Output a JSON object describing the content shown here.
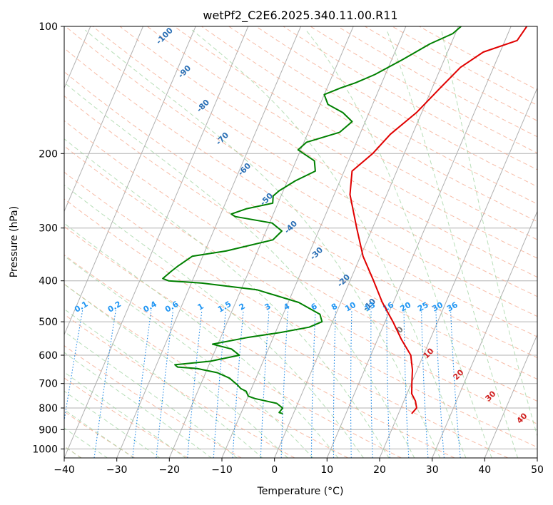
{
  "chart_data": {
    "type": "line",
    "diagram": "skew-T log-p",
    "title": "wetPf2_C2E6.2025.340.11.00.R11",
    "xlabel": "Temperature (°C)",
    "ylabel": "Pressure (hPa)",
    "xlim": [
      -40,
      50
    ],
    "ylim": [
      1050,
      100
    ],
    "x_ticks": [
      -40,
      -30,
      -20,
      -10,
      0,
      10,
      20,
      30,
      40,
      50
    ],
    "y_ticks": [
      100,
      200,
      300,
      400,
      500,
      600,
      700,
      800,
      900,
      1000
    ],
    "grid": true,
    "series": [
      {
        "name": "Temperature",
        "color": "#e00000",
        "points": [
          [
            22.5,
            825
          ],
          [
            23.0,
            800
          ],
          [
            22.2,
            770
          ],
          [
            20.9,
            740
          ],
          [
            20.1,
            700
          ],
          [
            19.1,
            650
          ],
          [
            17.6,
            600
          ],
          [
            14.5,
            550
          ],
          [
            11.5,
            500
          ],
          [
            7.9,
            450
          ],
          [
            4.5,
            400
          ],
          [
            0.5,
            350
          ],
          [
            -3.0,
            300
          ],
          [
            -7.0,
            250
          ],
          [
            -8.5,
            220
          ],
          [
            -6.0,
            200
          ],
          [
            -4.2,
            180
          ],
          [
            -1.0,
            160
          ],
          [
            1.5,
            140
          ],
          [
            3.7,
            125
          ],
          [
            6.8,
            115
          ],
          [
            12.3,
            108
          ],
          [
            13.0,
            100
          ]
        ]
      },
      {
        "name": "Dewpoint",
        "color": "#008000",
        "points": [
          [
            -2.0,
            825
          ],
          [
            -2.8,
            820
          ],
          [
            -2.5,
            800
          ],
          [
            -4.0,
            780
          ],
          [
            -8.5,
            760
          ],
          [
            -10.0,
            750
          ],
          [
            -10.8,
            730
          ],
          [
            -12.0,
            720
          ],
          [
            -13.0,
            705
          ],
          [
            -15.0,
            680
          ],
          [
            -17.8,
            660
          ],
          [
            -22.0,
            645
          ],
          [
            -25.8,
            640
          ],
          [
            -26.5,
            632
          ],
          [
            -20.0,
            620
          ],
          [
            -15.0,
            600
          ],
          [
            -17.0,
            580
          ],
          [
            -21.0,
            565
          ],
          [
            -15.0,
            545
          ],
          [
            -9.0,
            530
          ],
          [
            -4.0,
            515
          ],
          [
            -2.0,
            500
          ],
          [
            -3.0,
            480
          ],
          [
            -8.0,
            450
          ],
          [
            -17.0,
            420
          ],
          [
            -28.0,
            405
          ],
          [
            -34.5,
            400
          ],
          [
            -35.8,
            395
          ],
          [
            -34.8,
            380
          ],
          [
            -34.0,
            370
          ],
          [
            -32.0,
            350
          ],
          [
            -26.0,
            340
          ],
          [
            -18.0,
            320
          ],
          [
            -17.0,
            305
          ],
          [
            -19.5,
            292
          ],
          [
            -27.0,
            282
          ],
          [
            -28.0,
            278
          ],
          [
            -25.5,
            270
          ],
          [
            -21.0,
            262
          ],
          [
            -21.5,
            252
          ],
          [
            -20.8,
            245
          ],
          [
            -18.5,
            232
          ],
          [
            -15.5,
            220
          ],
          [
            -16.5,
            208
          ],
          [
            -20.5,
            196
          ],
          [
            -19.5,
            188
          ],
          [
            -14.0,
            178
          ],
          [
            -12.5,
            168
          ],
          [
            -15.0,
            160
          ],
          [
            -18.5,
            153
          ],
          [
            -20.0,
            145
          ],
          [
            -17.5,
            140
          ],
          [
            -15.0,
            136
          ],
          [
            -12.0,
            130
          ],
          [
            -8.0,
            120
          ],
          [
            -4.0,
            110
          ],
          [
            -0.5,
            104
          ],
          [
            0.5,
            100
          ]
        ]
      }
    ],
    "dry_adiabat_labels": [
      "-100",
      "-90",
      "-80",
      "-70",
      "-60",
      "-50",
      "-40",
      "-30",
      "-20",
      "-10"
    ],
    "moist_adiabat_labels": [
      "0",
      "10",
      "20",
      "30",
      "40"
    ],
    "mixing_ratio_labels": [
      "0.1",
      "0.2",
      "0.4",
      "0.6",
      "1",
      "1.5",
      "2",
      "3",
      "4",
      "6",
      "8",
      "10",
      "13",
      "16",
      "20",
      "25",
      "30",
      "36"
    ]
  }
}
